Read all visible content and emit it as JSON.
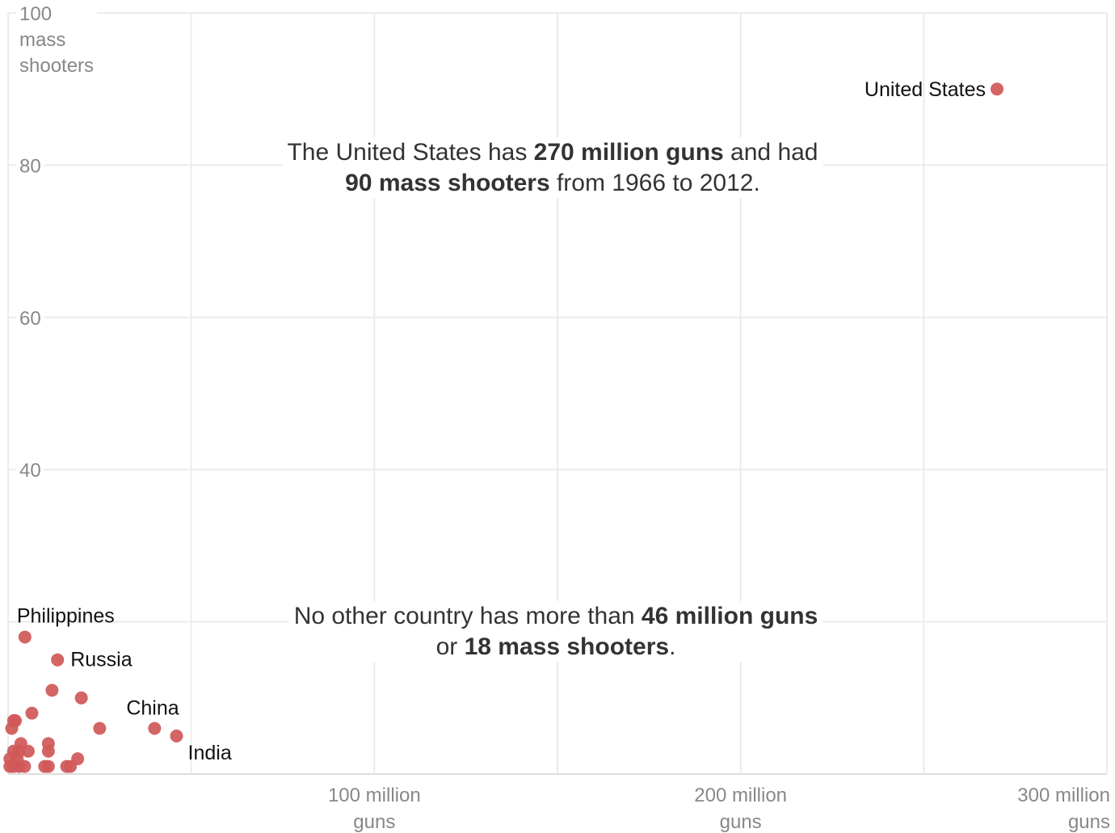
{
  "chart_data": {
    "type": "scatter",
    "title": "",
    "xlabel": "guns",
    "ylabel": "mass shooters",
    "xlim": [
      0,
      300
    ],
    "ylim": [
      0,
      100
    ],
    "grid": true,
    "colors": {
      "point": "#d05858",
      "grid": "#ebebeb",
      "tick": "#888888",
      "annotation": "#333333"
    },
    "x_ticks": [
      {
        "value": 100,
        "line1": "100 million",
        "line2": "guns"
      },
      {
        "value": 200,
        "line1": "200 million",
        "line2": "guns"
      },
      {
        "value": 300,
        "line1": "300 million",
        "line2": "guns"
      }
    ],
    "x_minor_gridlines": [
      50,
      150,
      250
    ],
    "y_ticks": [
      {
        "value": 100,
        "lines": [
          "100",
          "mass",
          "shooters"
        ]
      },
      {
        "value": 80,
        "lines": [
          "80"
        ]
      },
      {
        "value": 60,
        "lines": [
          "60"
        ]
      },
      {
        "value": 40,
        "lines": [
          "40"
        ]
      }
    ],
    "y_minor_gridlines": [
      20
    ],
    "points": [
      {
        "x": 270,
        "y": 90,
        "label": "United States"
      },
      {
        "x": 4.6,
        "y": 18,
        "label": "Philippines"
      },
      {
        "x": 13.5,
        "y": 15,
        "label": "Russia"
      },
      {
        "x": 40,
        "y": 6,
        "label": "China"
      },
      {
        "x": 46,
        "y": 5,
        "label": "India"
      },
      {
        "x": 12,
        "y": 11
      },
      {
        "x": 20,
        "y": 10
      },
      {
        "x": 6.5,
        "y": 8
      },
      {
        "x": 1.5,
        "y": 7
      },
      {
        "x": 2,
        "y": 7
      },
      {
        "x": 1,
        "y": 6
      },
      {
        "x": 25,
        "y": 6
      },
      {
        "x": 3.5,
        "y": 4
      },
      {
        "x": 11,
        "y": 4
      },
      {
        "x": 1.5,
        "y": 3
      },
      {
        "x": 3,
        "y": 3
      },
      {
        "x": 5.5,
        "y": 3
      },
      {
        "x": 11,
        "y": 3
      },
      {
        "x": 0.5,
        "y": 2
      },
      {
        "x": 2.5,
        "y": 2
      },
      {
        "x": 19,
        "y": 2
      },
      {
        "x": 0.5,
        "y": 1
      },
      {
        "x": 1.5,
        "y": 1
      },
      {
        "x": 3,
        "y": 1
      },
      {
        "x": 4.5,
        "y": 1
      },
      {
        "x": 10,
        "y": 1
      },
      {
        "x": 11,
        "y": 1
      },
      {
        "x": 16,
        "y": 1
      },
      {
        "x": 17,
        "y": 1
      }
    ],
    "annotations": [
      {
        "lines": [
          [
            {
              "text": "The United States has ",
              "bold": false
            },
            {
              "text": "270 million guns",
              "bold": true
            },
            {
              "text": " and had",
              "bold": false
            }
          ],
          [
            {
              "text": "90 mass shooters",
              "bold": true
            },
            {
              "text": " from 1966 to 2012.",
              "bold": false
            }
          ]
        ]
      },
      {
        "lines": [
          [
            {
              "text": "No other country has more than ",
              "bold": false
            },
            {
              "text": "46 million guns",
              "bold": true
            }
          ],
          [
            {
              "text": "or ",
              "bold": false
            },
            {
              "text": "18 mass shooters",
              "bold": true
            },
            {
              "text": ".",
              "bold": false
            }
          ]
        ]
      }
    ]
  }
}
